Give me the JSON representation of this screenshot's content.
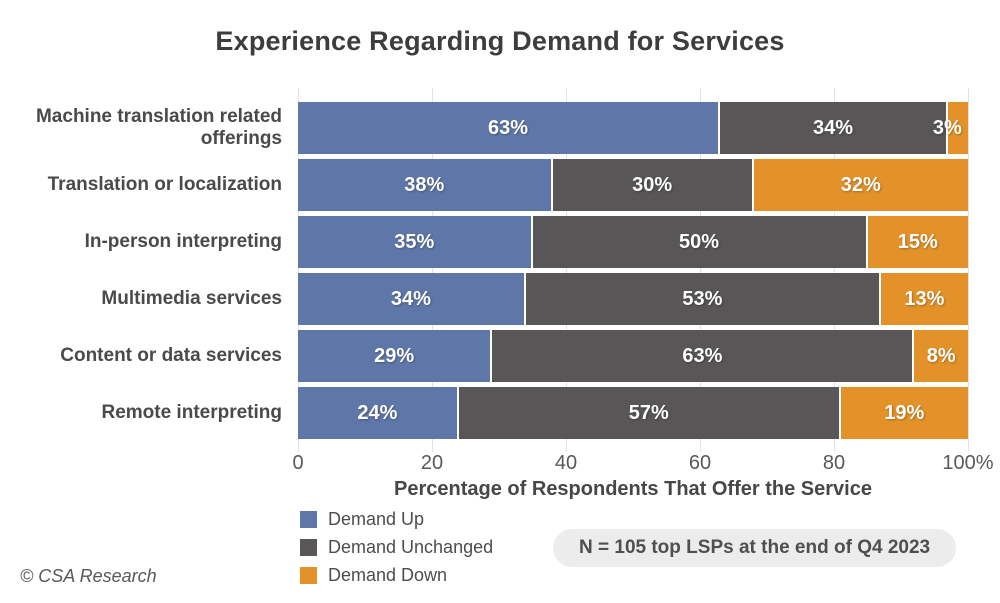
{
  "chart_data": {
    "type": "bar",
    "stacked": true,
    "orientation": "horizontal",
    "title": "Experience Regarding Demand for Services",
    "xlabel": "Percentage of Respondents That Offer the Service",
    "xlim": [
      0,
      100
    ],
    "grid": true,
    "legend_position": "bottom-left",
    "categories": [
      "Machine translation related offerings",
      "Translation or localization",
      "In-person interpreting",
      "Multimedia services",
      "Content or data services",
      "Remote interpreting"
    ],
    "series": [
      {
        "name": "Demand Up",
        "color": "#5f77a8",
        "values": [
          63,
          38,
          35,
          34,
          29,
          24
        ]
      },
      {
        "name": "Demand Unchanged",
        "color": "#585656",
        "values": [
          34,
          30,
          50,
          53,
          63,
          57
        ]
      },
      {
        "name": "Demand Down",
        "color": "#e39229",
        "values": [
          3,
          32,
          15,
          13,
          8,
          19
        ]
      }
    ],
    "value_suffix": "%",
    "x_ticks": [
      {
        "pos": 0,
        "label": "0"
      },
      {
        "pos": 20,
        "label": "20"
      },
      {
        "pos": 40,
        "label": "40"
      },
      {
        "pos": 60,
        "label": "60"
      },
      {
        "pos": 80,
        "label": "80"
      },
      {
        "pos": 100,
        "label": "100%"
      }
    ]
  },
  "note": "N = 105 top LSPs at the end of Q4 2023",
  "footer": "© CSA Research"
}
